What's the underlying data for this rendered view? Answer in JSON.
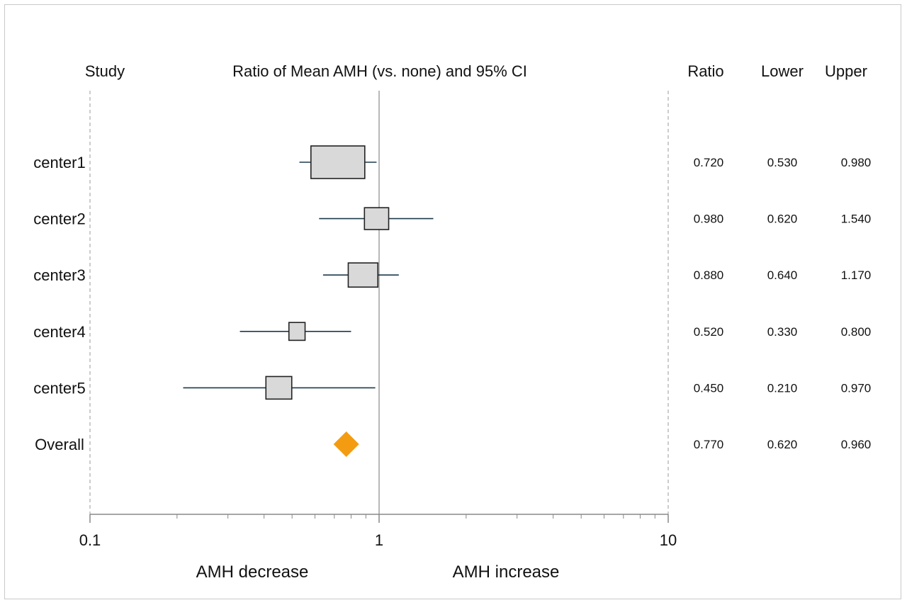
{
  "headers": {
    "study": "Study",
    "plot_title": "Ratio of Mean AMH (vs. none) and 95% CI",
    "ratio": "Ratio",
    "lower": "Lower",
    "upper": "Upper"
  },
  "direction_labels": {
    "left": "AMH decrease",
    "right": "AMH increase"
  },
  "chart_data": {
    "type": "forest",
    "title": "Ratio of Mean AMH (vs. none) and 95% CI",
    "x_scale": "log",
    "xlim": [
      0.1,
      10
    ],
    "x_ticks": [
      0.1,
      1,
      10
    ],
    "x_tick_labels": [
      "0.1",
      "1",
      "10"
    ],
    "reference_line": 1,
    "colors": {
      "box_fill": "#d9d9d9",
      "box_stroke": "#222222",
      "ci_line": "#1b3a4b",
      "overall_diamond": "#f39c12",
      "axis": "#888888",
      "dashed_border": "#999999"
    },
    "studies": [
      {
        "label": "center1",
        "ratio": 0.72,
        "lower": 0.53,
        "upper": 0.98,
        "ratio_text": "0.720",
        "lower_text": "0.530",
        "upper_text": "0.980",
        "weight": 1.0
      },
      {
        "label": "center2",
        "ratio": 0.98,
        "lower": 0.62,
        "upper": 1.54,
        "ratio_text": "0.980",
        "lower_text": "0.620",
        "upper_text": "1.540",
        "weight": 0.45
      },
      {
        "label": "center3",
        "ratio": 0.88,
        "lower": 0.64,
        "upper": 1.17,
        "ratio_text": "0.880",
        "lower_text": "0.640",
        "upper_text": "1.170",
        "weight": 0.55
      },
      {
        "label": "center4",
        "ratio": 0.52,
        "lower": 0.33,
        "upper": 0.8,
        "ratio_text": "0.520",
        "lower_text": "0.330",
        "upper_text": "0.800",
        "weight": 0.3
      },
      {
        "label": "center5",
        "ratio": 0.45,
        "lower": 0.21,
        "upper": 0.97,
        "ratio_text": "0.450",
        "lower_text": "0.210",
        "upper_text": "0.970",
        "weight": 0.48
      }
    ],
    "overall": {
      "label": "Overall",
      "ratio": 0.77,
      "lower": 0.62,
      "upper": 0.96,
      "ratio_text": "0.770",
      "lower_text": "0.620",
      "upper_text": "0.960"
    }
  }
}
